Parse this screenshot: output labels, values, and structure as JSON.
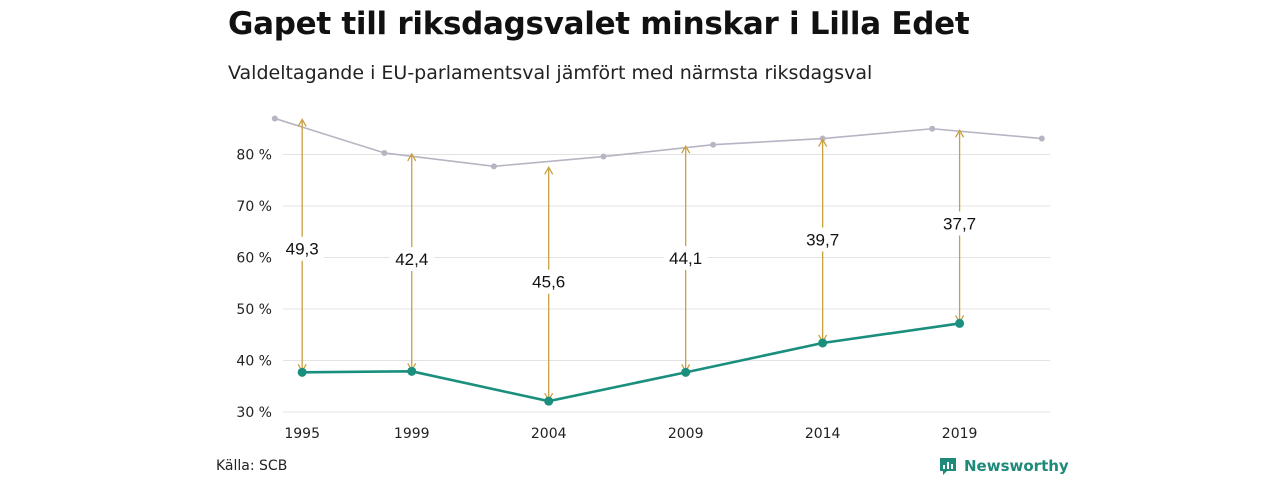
{
  "title": "Gapet till riksdagsvalet minskar i Lilla Edet",
  "subtitle": "Valdeltagande i EU-parlamentsval jämfört med närmsta riksdagsval",
  "source": "Källa: SCB",
  "brand": {
    "name": "Newsworthy",
    "logo_icon": "newsworthy-logo-icon"
  },
  "colors": {
    "eu": "#1a8f7e",
    "riksdag": "#b8b4c4",
    "arrow": "#c9a040",
    "grid": "#e3e3e3"
  },
  "chart_data": {
    "type": "line",
    "title": "Gapet till riksdagsvalet minskar i Lilla Edet",
    "subtitle": "Valdeltagande i EU-parlamentsval jämfört med närmsta riksdagsval",
    "xlim": [
      1994.3,
      2022.3
    ],
    "ylim": [
      30,
      90
    ],
    "x_ticks": [
      1995,
      1999,
      2004,
      2009,
      2014,
      2019
    ],
    "y_ticks": [
      {
        "value": 30,
        "label": "30 %"
      },
      {
        "value": 40,
        "label": "40 %"
      },
      {
        "value": 50,
        "label": "50 %"
      },
      {
        "value": 60,
        "label": "60 %"
      },
      {
        "value": 70,
        "label": "70 %"
      },
      {
        "value": 80,
        "label": "80 %"
      }
    ],
    "grid": true,
    "series": [
      {
        "key": "riksdag",
        "x": [
          1994,
          1998,
          2002,
          2006,
          2010,
          2014,
          2018,
          2022
        ],
        "values": [
          87.0,
          80.3,
          77.7,
          79.6,
          81.9,
          83.1,
          85.0,
          83.1
        ]
      },
      {
        "key": "eu",
        "x": [
          1995,
          1999,
          2004,
          2009,
          2014,
          2019
        ],
        "values": [
          37.7,
          37.9,
          32.1,
          37.7,
          43.4,
          47.2
        ]
      }
    ],
    "gaps": [
      {
        "x": 1995,
        "from": 37.7,
        "to": 87.0,
        "label": "49,3",
        "label_y": 61.7
      },
      {
        "x": 1999,
        "from": 37.9,
        "to": 80.3,
        "label": "42,4",
        "label_y": 59.7
      },
      {
        "x": 2004,
        "from": 32.1,
        "to": 77.7,
        "label": "45,6",
        "label_y": 55.3
      },
      {
        "x": 2009,
        "from": 37.7,
        "to": 81.8,
        "label": "44,1",
        "label_y": 59.9
      },
      {
        "x": 2014,
        "from": 43.4,
        "to": 83.1,
        "label": "39,7",
        "label_y": 63.5
      },
      {
        "x": 2019,
        "from": 47.2,
        "to": 84.9,
        "label": "37,7",
        "label_y": 66.6
      }
    ]
  }
}
